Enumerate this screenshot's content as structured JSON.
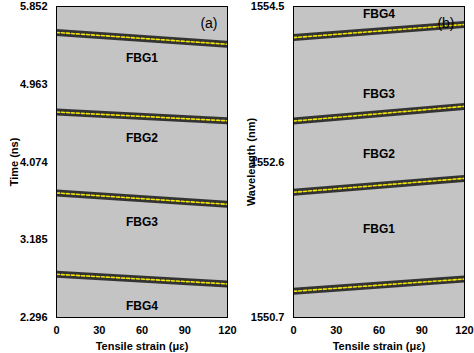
{
  "chart_data": [
    {
      "type": "line",
      "title": "(a)",
      "x_label": "Tensile strain (μɛ)",
      "y_label": "Time (ns)",
      "xlim": [
        0,
        120
      ],
      "xticks": [
        0,
        30,
        60,
        90,
        120
      ],
      "ylim": [
        2.296,
        5.852
      ],
      "yticks": [
        2.296,
        3.185,
        4.074,
        4.963,
        5.852
      ],
      "x": [
        0,
        120
      ],
      "series": [
        {
          "name": "FBG1",
          "color": "#f2e600",
          "line_style": "dashed",
          "values": [
            5.555,
            5.42
          ]
        },
        {
          "name": "FBG2",
          "color": "#f2e600",
          "line_style": "dashed",
          "values": [
            4.645,
            4.545
          ]
        },
        {
          "name": "FBG3",
          "color": "#f2e600",
          "line_style": "dashed",
          "values": [
            3.72,
            3.59
          ]
        },
        {
          "name": "FBG4",
          "color": "#f2e600",
          "line_style": "dashed",
          "values": [
            2.79,
            2.68
          ]
        }
      ],
      "annotations": [
        {
          "text": "FBG1",
          "x": 60,
          "y": 5.26
        },
        {
          "text": "FBG2",
          "x": 60,
          "y": 4.35
        },
        {
          "text": "FBG3",
          "x": 60,
          "y": 3.39
        },
        {
          "text": "FBG4",
          "x": 60,
          "y": 2.43
        }
      ]
    },
    {
      "type": "line",
      "title": "(b)",
      "x_label": "Tensile strain (μɛ)",
      "y_label": "Wavelength (nm)",
      "xlim": [
        0,
        120
      ],
      "xticks": [
        0,
        30,
        60,
        90,
        120
      ],
      "ylim": [
        1550.7,
        1554.5
      ],
      "yticks": [
        1550.7,
        1552.6,
        1554.5
      ],
      "x": [
        0,
        120
      ],
      "series": [
        {
          "name": "FBG1",
          "color": "#f2e600",
          "line_style": "dashed",
          "values": [
            1551.02,
            1551.17
          ]
        },
        {
          "name": "FBG2",
          "color": "#f2e600",
          "line_style": "dashed",
          "values": [
            1552.23,
            1552.4
          ]
        },
        {
          "name": "FBG3",
          "color": "#f2e600",
          "line_style": "dashed",
          "values": [
            1553.1,
            1553.28
          ]
        },
        {
          "name": "FBG4",
          "color": "#f2e600",
          "line_style": "dashed",
          "values": [
            1554.12,
            1554.28
          ]
        }
      ],
      "annotations": [
        {
          "text": "FBG4",
          "x": 60,
          "y": 1554.41
        },
        {
          "text": "FBG3",
          "x": 60,
          "y": 1553.43
        },
        {
          "text": "FBG2",
          "x": 60,
          "y": 1552.7
        },
        {
          "text": "FBG1",
          "x": 60,
          "y": 1551.78
        }
      ]
    }
  ]
}
